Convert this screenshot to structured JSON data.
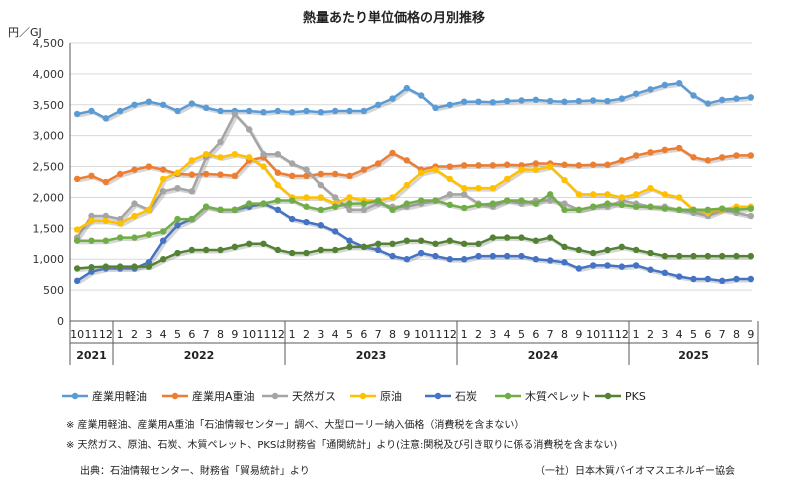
{
  "chart_data": {
    "type": "line",
    "title": "熱量あたり単位価格の月別推移",
    "ylabel": "円／GJ",
    "ylim": [
      0,
      4500
    ],
    "yticks": [
      "0",
      "500",
      "1,000",
      "1,500",
      "2,000",
      "2,500",
      "3,000",
      "3,500",
      "4,000",
      "4,500"
    ],
    "months": [
      "10",
      "11",
      "12",
      "1",
      "2",
      "3",
      "4",
      "5",
      "6",
      "7",
      "8",
      "9",
      "10",
      "11",
      "12",
      "1",
      "2",
      "3",
      "4",
      "5",
      "6",
      "7",
      "8",
      "9",
      "10",
      "11",
      "12",
      "1",
      "2",
      "3",
      "4",
      "5",
      "6",
      "7",
      "8",
      "9",
      "10",
      "11",
      "12",
      "1",
      "2",
      "3",
      "4",
      "5",
      "6",
      "7",
      "8",
      "9"
    ],
    "years": [
      {
        "label": "2021",
        "count": 3
      },
      {
        "label": "2022",
        "count": 12
      },
      {
        "label": "2023",
        "count": 12
      },
      {
        "label": "2024",
        "count": 12
      },
      {
        "label": "2025",
        "count": 9
      }
    ],
    "series": [
      {
        "name": "産業用軽油",
        "color": "#5B9BD5",
        "values": [
          3350,
          3400,
          3280,
          3400,
          3500,
          3550,
          3500,
          3400,
          3520,
          3450,
          3400,
          3400,
          3400,
          3380,
          3400,
          3380,
          3400,
          3380,
          3400,
          3400,
          3400,
          3500,
          3600,
          3770,
          3650,
          3450,
          3500,
          3550,
          3550,
          3540,
          3560,
          3570,
          3580,
          3560,
          3550,
          3560,
          3570,
          3560,
          3600,
          3680,
          3750,
          3820,
          3850,
          3650,
          3520,
          3580,
          3600,
          3620
        ]
      },
      {
        "name": "産業用A重油",
        "color": "#ED7D31",
        "values": [
          2300,
          2350,
          2250,
          2380,
          2450,
          2500,
          2450,
          2380,
          2370,
          2380,
          2370,
          2350,
          2600,
          2650,
          2400,
          2350,
          2350,
          2380,
          2380,
          2350,
          2450,
          2550,
          2720,
          2600,
          2450,
          2500,
          2500,
          2520,
          2520,
          2520,
          2530,
          2520,
          2550,
          2550,
          2530,
          2520,
          2530,
          2530,
          2600,
          2680,
          2730,
          2770,
          2800,
          2650,
          2600,
          2650,
          2680,
          2680
        ]
      },
      {
        "name": "天然ガス",
        "color": "#A5A5A5",
        "values": [
          1350,
          1700,
          1700,
          1650,
          1900,
          1800,
          2100,
          2150,
          2100,
          2650,
          2900,
          3350,
          3100,
          2700,
          2700,
          2550,
          2450,
          2200,
          2000,
          1800,
          1800,
          1900,
          1850,
          1850,
          1900,
          1950,
          2050,
          2050,
          1900,
          1850,
          1950,
          1900,
          1950,
          1950,
          1900,
          1800,
          1850,
          1850,
          1950,
          1900,
          1850,
          1850,
          1800,
          1750,
          1700,
          1800,
          1750,
          1700
        ]
      },
      {
        "name": "原油",
        "color": "#FFC000",
        "values": [
          1480,
          1620,
          1620,
          1580,
          1700,
          1800,
          2300,
          2400,
          2600,
          2700,
          2650,
          2700,
          2650,
          2500,
          2200,
          2000,
          2000,
          2000,
          1900,
          2000,
          1950,
          1950,
          2000,
          2200,
          2400,
          2450,
          2300,
          2150,
          2150,
          2150,
          2300,
          2450,
          2450,
          2500,
          2280,
          2050,
          2050,
          2050,
          2000,
          2050,
          2150,
          2050,
          2000,
          1800,
          1750,
          1800,
          1850,
          1850
        ]
      },
      {
        "name": "石炭",
        "color": "#4472C4",
        "values": [
          650,
          800,
          850,
          850,
          850,
          950,
          1300,
          1550,
          1650,
          1850,
          1800,
          1800,
          1850,
          1900,
          1800,
          1650,
          1600,
          1550,
          1450,
          1300,
          1200,
          1150,
          1050,
          1000,
          1100,
          1050,
          1000,
          1000,
          1050,
          1050,
          1050,
          1050,
          1000,
          980,
          950,
          850,
          900,
          900,
          880,
          900,
          830,
          780,
          720,
          680,
          680,
          650,
          680,
          680
        ]
      },
      {
        "name": "木質ペレット",
        "color": "#70AD47",
        "values": [
          1300,
          1300,
          1300,
          1350,
          1350,
          1400,
          1450,
          1650,
          1650,
          1850,
          1800,
          1800,
          1900,
          1900,
          1950,
          1950,
          1850,
          1800,
          1850,
          1900,
          1900,
          1950,
          1800,
          1900,
          1950,
          1950,
          1880,
          1830,
          1880,
          1900,
          1950,
          1950,
          1900,
          2050,
          1800,
          1800,
          1850,
          1900,
          1880,
          1850,
          1850,
          1820,
          1800,
          1800,
          1800,
          1820,
          1800,
          1820
        ]
      },
      {
        "name": "PKS",
        "color": "#548235",
        "values": [
          850,
          870,
          880,
          880,
          880,
          880,
          1000,
          1100,
          1150,
          1150,
          1150,
          1200,
          1250,
          1250,
          1150,
          1100,
          1100,
          1150,
          1150,
          1200,
          1200,
          1250,
          1250,
          1300,
          1300,
          1250,
          1300,
          1250,
          1250,
          1350,
          1350,
          1350,
          1300,
          1350,
          1200,
          1150,
          1100,
          1150,
          1200,
          1150,
          1100,
          1050,
          1050,
          1050,
          1050,
          1050,
          1050,
          1050
        ]
      }
    ]
  },
  "notes": {
    "note1": "※ 産業用軽油、産業用A重油「石油情報センター」調べ、大型ローリー納入価格（消費税を含まない）",
    "note2": "※ 天然ガス、原油、石炭、木質ペレット、PKSは財務省「通関統計」より(注意:関税及び引き取りに係る消費税を含まない)",
    "source": "出典：石油情報センター、財務省「貿易統計」より",
    "credit": "（一社）日本木質バイオマスエネルギー協会"
  }
}
